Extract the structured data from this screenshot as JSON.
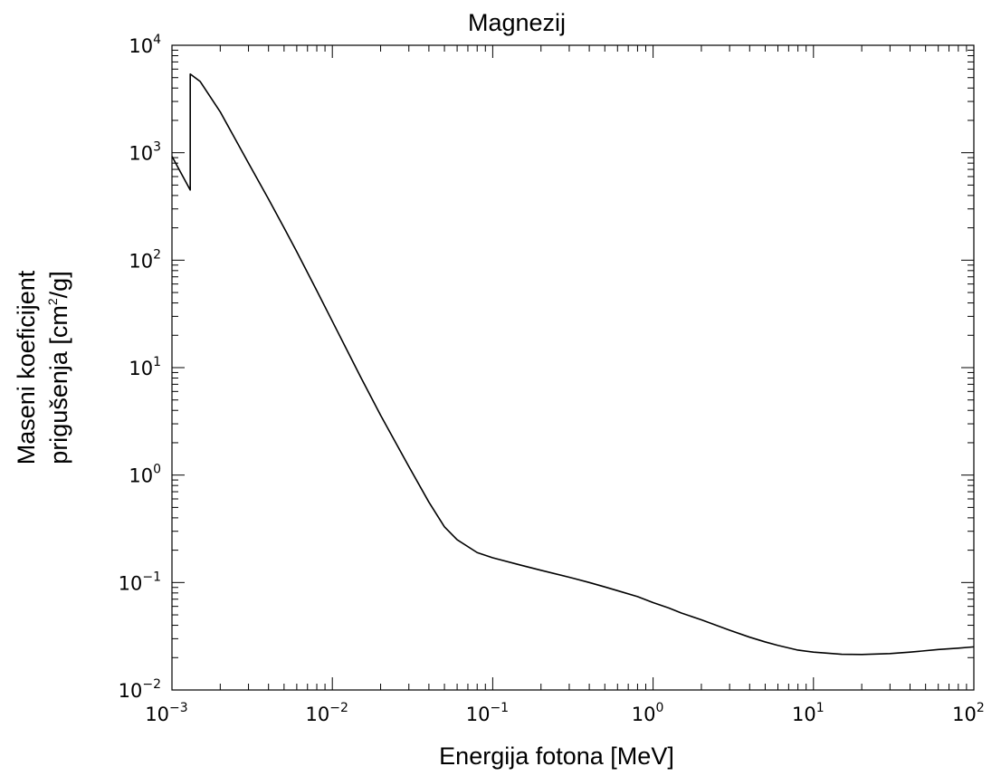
{
  "chart_data": {
    "type": "line",
    "title": "Magnezij",
    "xlabel": "Energija fotona [MeV]",
    "ylabel_line1": "Maseni koeficijent",
    "ylabel_line2_prefix": "prigušenja [cm",
    "ylabel_line2_sup": "2",
    "ylabel_line2_suffix": "/g]",
    "x_scale": "log",
    "y_scale": "log",
    "xlim": [
      0.001,
      100
    ],
    "ylim": [
      0.01,
      10000
    ],
    "grid": false,
    "x_ticks": [
      {
        "value": 0.001,
        "base": "10",
        "exp": "-3"
      },
      {
        "value": 0.01,
        "base": "10",
        "exp": "-2"
      },
      {
        "value": 0.1,
        "base": "10",
        "exp": "-1"
      },
      {
        "value": 1,
        "base": "10",
        "exp": "0"
      },
      {
        "value": 10,
        "base": "10",
        "exp": "1"
      },
      {
        "value": 100,
        "base": "10",
        "exp": "2"
      }
    ],
    "y_ticks": [
      {
        "value": 0.01,
        "base": "10",
        "exp": "-2"
      },
      {
        "value": 0.1,
        "base": "10",
        "exp": "-1"
      },
      {
        "value": 1,
        "base": "10",
        "exp": "0"
      },
      {
        "value": 10,
        "base": "10",
        "exp": "1"
      },
      {
        "value": 100,
        "base": "10",
        "exp": "2"
      },
      {
        "value": 1000,
        "base": "10",
        "exp": "3"
      },
      {
        "value": 10000,
        "base": "10",
        "exp": "4"
      }
    ],
    "series": [
      {
        "x": [
          0.001,
          0.0013,
          0.0013,
          0.0015,
          0.002,
          0.003,
          0.004,
          0.005,
          0.006,
          0.008,
          0.01,
          0.015,
          0.02,
          0.03,
          0.04,
          0.05,
          0.06,
          0.08,
          0.1,
          0.15,
          0.2,
          0.3,
          0.4,
          0.5,
          0.6,
          0.8,
          1,
          1.25,
          1.5,
          2,
          3,
          4,
          5,
          6,
          8,
          10,
          15,
          20,
          30,
          40,
          50,
          60,
          80,
          100
        ],
        "y": [
          925,
          450,
          5400,
          4600,
          2400,
          800,
          370,
          200,
          120,
          52,
          27,
          8.2,
          3.6,
          1.2,
          0.56,
          0.33,
          0.25,
          0.19,
          0.17,
          0.145,
          0.13,
          0.112,
          0.1,
          0.091,
          0.084,
          0.074,
          0.065,
          0.058,
          0.052,
          0.045,
          0.036,
          0.031,
          0.028,
          0.026,
          0.0235,
          0.0225,
          0.0215,
          0.0214,
          0.0218,
          0.0225,
          0.0232,
          0.0238,
          0.0245,
          0.0252
        ]
      }
    ]
  }
}
